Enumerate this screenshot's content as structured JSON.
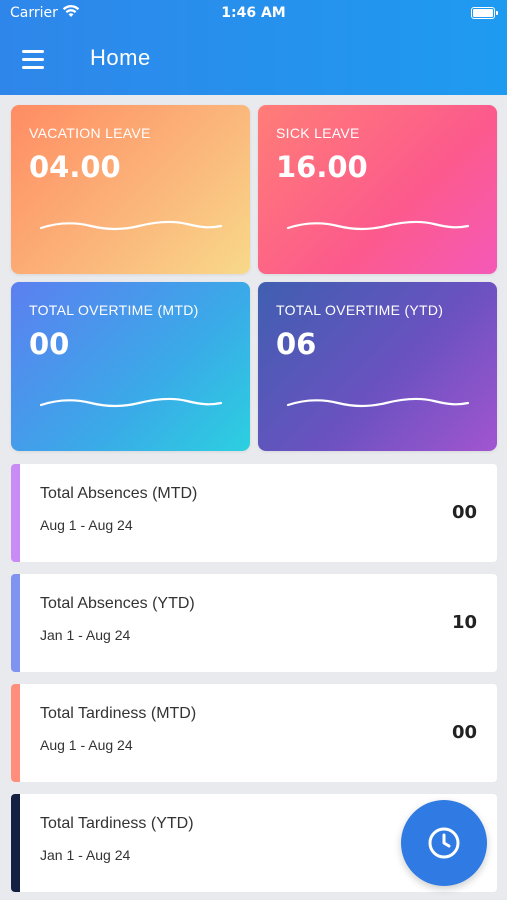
{
  "status_bar": {
    "carrier": "Carrier",
    "time": "1:46 AM"
  },
  "header": {
    "title": "Home",
    "menu_icon": "hamburger-menu-icon"
  },
  "summary_cards": [
    {
      "label": "VACATION LEAVE",
      "value": "04.00"
    },
    {
      "label": "SICK LEAVE",
      "value": "16.00"
    },
    {
      "label": "TOTAL OVERTIME (MTD)",
      "value": "00"
    },
    {
      "label": "TOTAL OVERTIME (YTD)",
      "value": "06"
    }
  ],
  "stat_rows": [
    {
      "title": "Total Absences (MTD)",
      "range": "Aug 1 - Aug 24",
      "value": "00",
      "accent": "#c98cf5"
    },
    {
      "title": "Total Absences (YTD)",
      "range": "Jan 1 - Aug 24",
      "value": "10",
      "accent": "#7f93f0"
    },
    {
      "title": "Total Tardiness (MTD)",
      "range": "Aug 1 - Aug 24",
      "value": "00",
      "accent": "#ff8f7c"
    },
    {
      "title": "Total Tardiness (YTD)",
      "range": "Jan 1 - Aug 24",
      "value": "",
      "accent": "#142042"
    }
  ],
  "fab": {
    "icon": "clock-icon",
    "color": "#2f7ae3"
  }
}
